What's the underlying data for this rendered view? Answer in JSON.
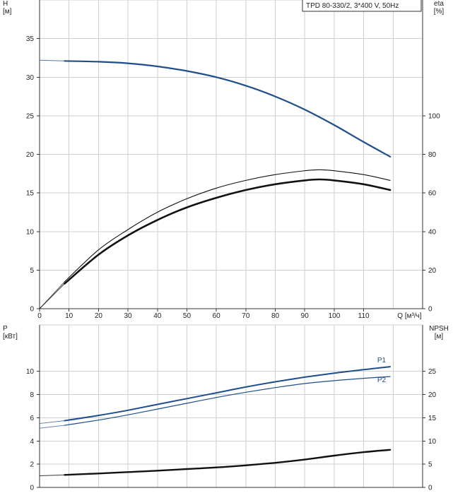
{
  "chart_data": [
    {
      "type": "line",
      "title": "TPD 80-330/2, 3*400 V, 50Hz",
      "x": {
        "label": "Q [м³/ч]",
        "range": [
          0,
          130
        ],
        "ticks": [
          0,
          10,
          20,
          30,
          40,
          50,
          60,
          70,
          80,
          90,
          100,
          110
        ]
      },
      "y_left": {
        "label_line1": "H",
        "label_line2": "[м]",
        "range": [
          0,
          40
        ],
        "ticks": [
          0,
          5,
          10,
          15,
          20,
          25,
          30,
          35
        ]
      },
      "y_right": {
        "label_line1": "eta",
        "label_line2": "[%]",
        "range": [
          0,
          160
        ],
        "ticks": [
          0,
          20,
          40,
          60,
          80,
          100
        ]
      },
      "grid": true,
      "series": [
        {
          "axis": "left",
          "color": "#1f4e8c",
          "width": 2.2,
          "dashed_start": 8.5,
          "x": [
            0,
            8.5,
            20,
            30,
            40,
            50,
            60,
            70,
            80,
            90,
            100,
            110,
            119
          ],
          "y": [
            32.2,
            32.1,
            32.0,
            31.8,
            31.4,
            30.8,
            30.0,
            28.9,
            27.5,
            25.8,
            23.8,
            21.6,
            19.7
          ]
        },
        {
          "axis": "right",
          "color": "#111111",
          "width": 1.1,
          "dashed_start": 8.5,
          "x": [
            0,
            8.5,
            20,
            30,
            40,
            50,
            60,
            70,
            80,
            90,
            95,
            100,
            110,
            119
          ],
          "y": [
            0,
            14,
            30.5,
            41,
            50,
            57,
            62.5,
            66.5,
            69.5,
            71.5,
            72,
            71.5,
            69.5,
            66.5
          ]
        },
        {
          "axis": "right",
          "color": "#111111",
          "width": 2.6,
          "dashed_start": 8.5,
          "x": [
            0,
            8.5,
            20,
            30,
            40,
            50,
            60,
            70,
            80,
            90,
            95,
            100,
            110,
            119
          ],
          "y": [
            0,
            13,
            28,
            38,
            46,
            52.5,
            57.5,
            61.5,
            64.5,
            66.5,
            67,
            66.5,
            64.5,
            61.5
          ]
        }
      ]
    },
    {
      "type": "line",
      "x": {
        "range": [
          0,
          130
        ],
        "ticks": []
      },
      "y_left": {
        "label_line1": "P",
        "label_line2": "[кВт]",
        "range": [
          0,
          14
        ],
        "ticks": [
          0,
          2,
          4,
          6,
          8,
          10
        ]
      },
      "y_right": {
        "label_line1": "NPSH",
        "label_line2": "[м]",
        "range": [
          0,
          35
        ],
        "ticks": [
          0,
          5,
          10,
          15,
          20,
          25
        ]
      },
      "grid": true,
      "series": [
        {
          "name": "P1",
          "axis": "left",
          "color": "#1f4e8c",
          "width": 2.0,
          "dashed_start": 8.5,
          "x": [
            0,
            8.5,
            20,
            30,
            40,
            50,
            60,
            70,
            80,
            90,
            100,
            110,
            119
          ],
          "y": [
            5.5,
            5.75,
            6.2,
            6.65,
            7.15,
            7.65,
            8.15,
            8.65,
            9.1,
            9.5,
            9.85,
            10.15,
            10.4
          ]
        },
        {
          "name": "P2",
          "axis": "left",
          "color": "#1f4e8c",
          "width": 1.2,
          "dashed_start": 8.5,
          "x": [
            0,
            8.5,
            20,
            30,
            40,
            50,
            60,
            70,
            80,
            90,
            100,
            110,
            119
          ],
          "y": [
            5.1,
            5.35,
            5.8,
            6.25,
            6.75,
            7.25,
            7.75,
            8.2,
            8.6,
            8.95,
            9.2,
            9.4,
            9.55
          ]
        },
        {
          "axis": "right",
          "color": "#111111",
          "width": 2.4,
          "dashed_start": 8.5,
          "x": [
            0,
            8.5,
            20,
            30,
            40,
            50,
            60,
            70,
            80,
            90,
            100,
            110,
            119
          ],
          "y": [
            2.5,
            2.7,
            3.0,
            3.3,
            3.6,
            3.95,
            4.3,
            4.75,
            5.3,
            6.0,
            6.85,
            7.6,
            8.1
          ]
        }
      ]
    }
  ]
}
